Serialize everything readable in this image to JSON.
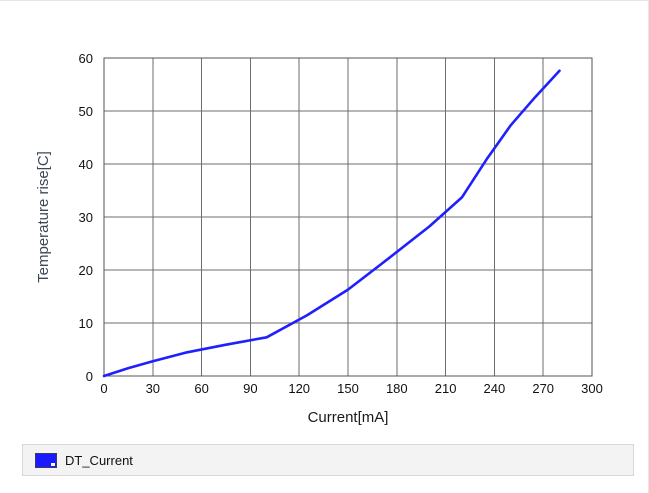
{
  "chart_data": {
    "type": "line",
    "xlabel": "Current[mA]",
    "ylabel": "Temperature rise[C]",
    "xlim": [
      0,
      300
    ],
    "ylim": [
      0,
      60
    ],
    "xticks": [
      0,
      30,
      60,
      90,
      120,
      150,
      180,
      210,
      240,
      270,
      300
    ],
    "yticks": [
      0,
      10,
      20,
      30,
      40,
      50,
      60
    ],
    "grid": true,
    "legend_position": "bottom",
    "series": [
      {
        "name": "DT_Current",
        "color": "#2020ff",
        "x": [
          0,
          15,
          30,
          50,
          75,
          100,
          125,
          150,
          175,
          200,
          220,
          235,
          250,
          265,
          280
        ],
        "y": [
          0,
          1.5,
          2.8,
          4.4,
          5.9,
          7.3,
          11.5,
          16.3,
          22.2,
          28.2,
          33.7,
          40.8,
          47.3,
          52.6,
          57.6
        ]
      }
    ]
  },
  "legend": {
    "label": "DT_Current",
    "swatch_color": "#1a1aff"
  }
}
